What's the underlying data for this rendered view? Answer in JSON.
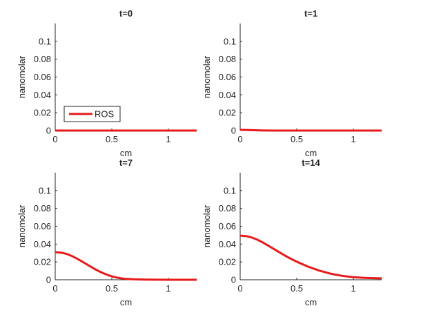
{
  "chart_data": [
    {
      "type": "line",
      "title": "t=0",
      "xlabel": "cm",
      "ylabel": "nanomolar",
      "xlim": [
        0,
        1.25
      ],
      "ylim": [
        0,
        0.12
      ],
      "xticks": [
        "0",
        "0.5",
        "1"
      ],
      "yticks": [
        "0",
        "0.02",
        "0.04",
        "0.06",
        "0.08",
        "0.1"
      ],
      "legend": {
        "entries": [
          "ROS"
        ],
        "placement": "bottom-left"
      },
      "series": [
        {
          "name": "ROS",
          "color": "#e8191a",
          "x": [
            0,
            0.25,
            0.5,
            0.75,
            1.0,
            1.25
          ],
          "y": [
            0,
            0,
            0,
            0,
            0,
            0
          ]
        }
      ]
    },
    {
      "type": "line",
      "title": "t=1",
      "xlabel": "cm",
      "ylabel": "nanomolar",
      "xlim": [
        0,
        1.25
      ],
      "ylim": [
        0,
        0.12
      ],
      "xticks": [
        "0",
        "0.5",
        "1"
      ],
      "yticks": [
        "0",
        "0.02",
        "0.04",
        "0.06",
        "0.08",
        "0.1"
      ],
      "series": [
        {
          "color": "#e8191a",
          "x": [
            0,
            0.05,
            0.1,
            0.15,
            0.2,
            0.3,
            1.25
          ],
          "y": [
            0.0008,
            0.0007,
            0.0005,
            0.0003,
            0.0001,
            0,
            0
          ]
        }
      ]
    },
    {
      "type": "line",
      "title": "t=7",
      "xlabel": "cm",
      "ylabel": "nanomolar",
      "xlim": [
        0,
        1.25
      ],
      "ylim": [
        0,
        0.12
      ],
      "xticks": [
        "0",
        "0.5",
        "1"
      ],
      "yticks": [
        "0",
        "0.02",
        "0.04",
        "0.06",
        "0.08",
        "0.1"
      ],
      "series": [
        {
          "color": "#e8191a",
          "x": [
            0,
            0.05,
            0.1,
            0.15,
            0.2,
            0.25,
            0.3,
            0.35,
            0.4,
            0.45,
            0.5,
            0.55,
            0.6,
            0.7,
            0.8,
            0.9,
            1.0,
            1.1,
            1.25
          ],
          "y": [
            0.031,
            0.0305,
            0.029,
            0.0265,
            0.0232,
            0.0195,
            0.0157,
            0.012,
            0.0087,
            0.006,
            0.0038,
            0.0023,
            0.0013,
            0.0005,
            0.0002,
            0.0001,
            0,
            0,
            0
          ]
        }
      ]
    },
    {
      "type": "line",
      "title": "t=14",
      "xlabel": "cm",
      "ylabel": "nanomolar",
      "xlim": [
        0,
        1.25
      ],
      "ylim": [
        0,
        0.12
      ],
      "xticks": [
        "0",
        "0.5",
        "1"
      ],
      "yticks": [
        "0",
        "0.02",
        "0.04",
        "0.06",
        "0.08",
        "0.1"
      ],
      "series": [
        {
          "color": "#e8191a",
          "x": [
            0,
            0.05,
            0.1,
            0.15,
            0.2,
            0.25,
            0.3,
            0.35,
            0.4,
            0.45,
            0.5,
            0.6,
            0.7,
            0.8,
            0.9,
            1.0,
            1.1,
            1.2,
            1.25
          ],
          "y": [
            0.0495,
            0.049,
            0.0475,
            0.045,
            0.0418,
            0.0381,
            0.0343,
            0.0305,
            0.0268,
            0.0234,
            0.0202,
            0.0147,
            0.0102,
            0.0068,
            0.0044,
            0.0029,
            0.0021,
            0.0017,
            0.0016
          ]
        }
      ]
    }
  ]
}
